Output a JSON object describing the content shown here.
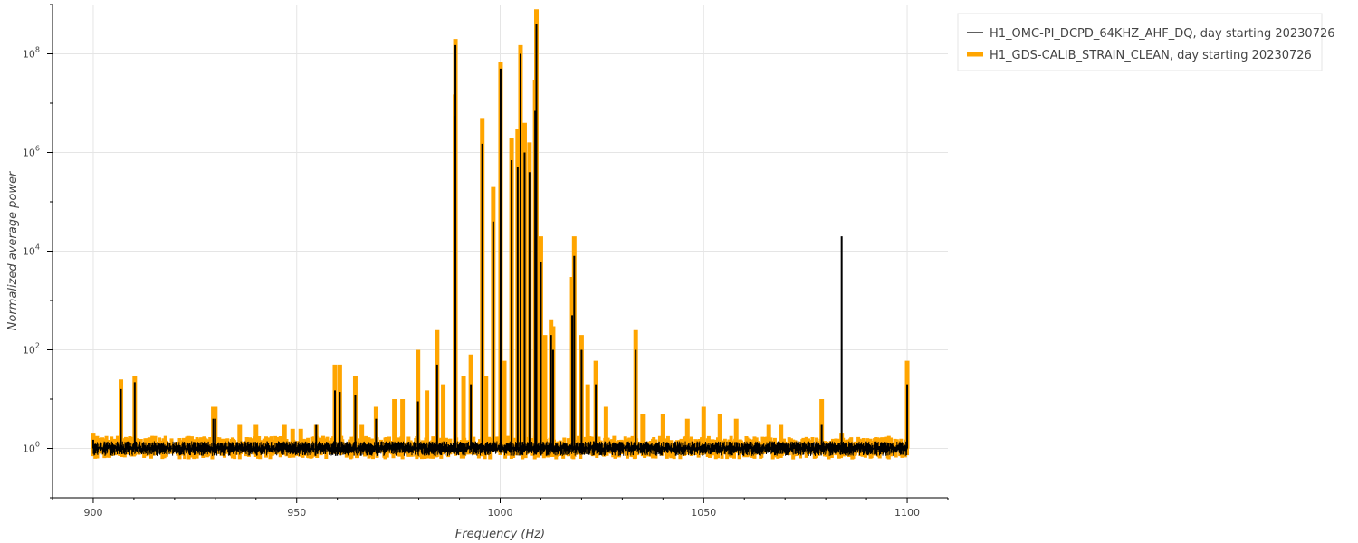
{
  "chart_data": {
    "type": "line",
    "xlabel": "Frequency (Hz)",
    "ylabel": "Normalized average power",
    "xlim": [
      890,
      1110
    ],
    "ylim": [
      0.1,
      1000000000
    ],
    "yscale": "log",
    "grid": true,
    "legend": "outside-top-right",
    "x_ticks": [
      900,
      950,
      1000,
      1050,
      1100
    ],
    "y_ticks": [
      {
        "value": 1,
        "mantissa": "10",
        "exponent": "0"
      },
      {
        "value": 100,
        "mantissa": "10",
        "exponent": "2"
      },
      {
        "value": 10000,
        "mantissa": "10",
        "exponent": "4"
      },
      {
        "value": 1000000,
        "mantissa": "10",
        "exponent": "6"
      },
      {
        "value": 100000000,
        "mantissa": "10",
        "exponent": "8"
      }
    ],
    "series": [
      {
        "name": "H1_OMC-PI_DCPD_64KHZ_AHF_DQ, day starting 20230726",
        "color": "#000000",
        "baseline": 1.0,
        "x": [
          900,
          906.8,
          910.2,
          929.5,
          930,
          954.8,
          959.4,
          960.6,
          964.4,
          969.5,
          979.8,
          984.5,
          988.9,
          989,
          992.8,
          995.6,
          998.3,
          1000.1,
          1002.8,
          1004.3,
          1005,
          1006,
          1007.2,
          1008.6,
          1008.9,
          1010,
          1012.5,
          1013,
          1017.7,
          1018.2,
          1020,
          1023.5,
          1033.3,
          1079,
          1083.9,
          1100
        ],
        "y": [
          1.5,
          16,
          22,
          4,
          4,
          3,
          15,
          14,
          12,
          4,
          9,
          50,
          5500000,
          150000000,
          20,
          1500000,
          40000,
          50000000,
          700000,
          500000,
          100000000,
          1000000,
          400000,
          7000000,
          400000000,
          6000,
          200,
          100,
          500,
          8000,
          100,
          20,
          100,
          3,
          20000,
          20
        ]
      },
      {
        "name": "H1_GDS-CALIB_STRAIN_CLEAN, day starting 20230726",
        "color": "#ffa500",
        "baseline": 1.0,
        "x": [
          900,
          906.8,
          910.2,
          929.5,
          930,
          936,
          940,
          947,
          949,
          951,
          954.8,
          959.4,
          960.6,
          964.4,
          966,
          969.5,
          974,
          976,
          979.8,
          982,
          984.5,
          986,
          988.9,
          989,
          991,
          992.8,
          995.6,
          996.5,
          998.3,
          1000.1,
          1001,
          1002.8,
          1004.3,
          1005,
          1006,
          1007.2,
          1008.6,
          1008.9,
          1010,
          1011,
          1012.5,
          1013,
          1017.7,
          1018.2,
          1020,
          1021.5,
          1023.5,
          1026,
          1033.3,
          1035,
          1040,
          1046,
          1050,
          1054,
          1058,
          1066,
          1069,
          1079,
          1083.9,
          1100
        ],
        "y": [
          2,
          25,
          30,
          7,
          7,
          3,
          3,
          3,
          2.5,
          2.5,
          3,
          50,
          50,
          30,
          3,
          7,
          10,
          10,
          100,
          15,
          250,
          20,
          15000000,
          200000000,
          30,
          80,
          5000000,
          30,
          200000,
          70000000,
          60,
          2000000,
          3000000,
          150000000,
          4000000,
          1600000,
          30000000,
          800000000,
          20000,
          200,
          400,
          300,
          3000,
          20000,
          200,
          20,
          60,
          7,
          250,
          5,
          5,
          4,
          7,
          5,
          4,
          3,
          3,
          10,
          2,
          60
        ]
      }
    ]
  }
}
